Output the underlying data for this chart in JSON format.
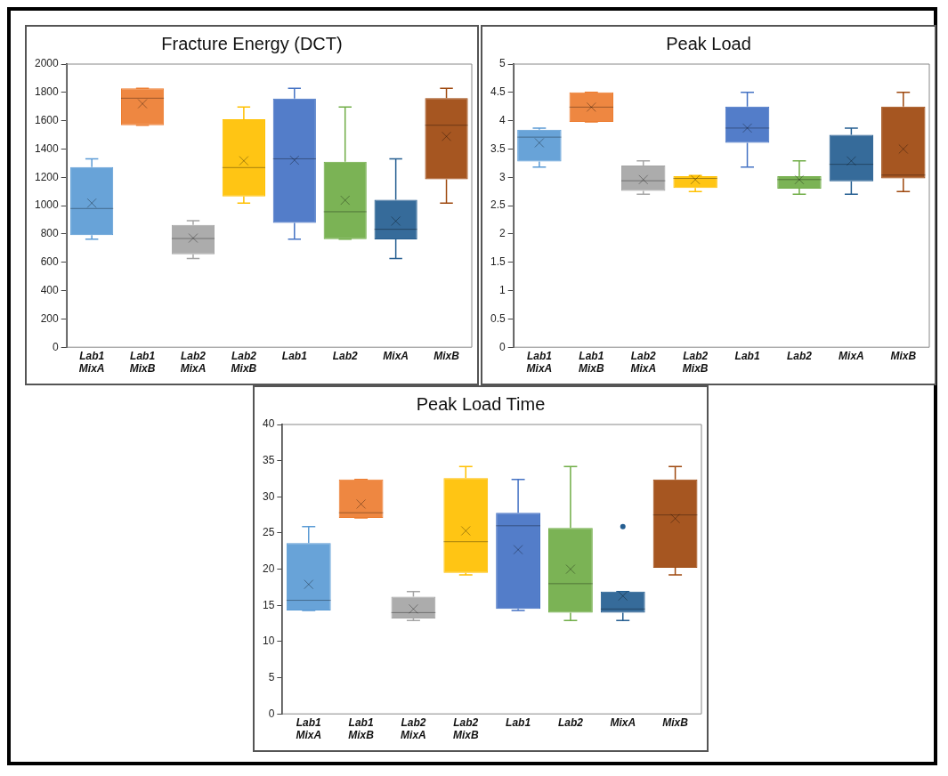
{
  "chart_data": [
    {
      "type": "box",
      "title": "Fracture Energy (DCT)",
      "categories": [
        "Lab1 MixA",
        "Lab1 MixB",
        "Lab2 MixA",
        "Lab2 MixB",
        "Lab1",
        "Lab2",
        "MixA",
        "MixB"
      ],
      "colors": [
        "#5b9bd5",
        "#ed7d31",
        "#a5a5a5",
        "#ffc000",
        "#4472c4",
        "#70ad47",
        "#255e91",
        "#9e480e"
      ],
      "boxes": [
        {
          "low": 764,
          "q1": 791,
          "median": 980,
          "q3": 1273,
          "high": 1331,
          "mean": 1018
        },
        {
          "low": 1568,
          "q1": 1568,
          "median": 1759,
          "q3": 1828,
          "high": 1828,
          "mean": 1720
        },
        {
          "low": 627,
          "q1": 656,
          "median": 768,
          "q3": 864,
          "high": 893,
          "mean": 771
        },
        {
          "low": 1018,
          "q1": 1065,
          "median": 1269,
          "q3": 1610,
          "high": 1697,
          "mean": 1317
        },
        {
          "low": 764,
          "q1": 878,
          "median": 1331,
          "q3": 1757,
          "high": 1828,
          "mean": 1321
        },
        {
          "low": 764,
          "q1": 764,
          "median": 957,
          "q3": 1310,
          "high": 1697,
          "mean": 1038
        },
        {
          "low": 627,
          "q1": 762,
          "median": 833,
          "q3": 1041,
          "high": 1331,
          "mean": 891
        },
        {
          "low": 1018,
          "q1": 1186,
          "median": 1568,
          "q3": 1759,
          "high": 1828,
          "mean": 1489
        }
      ],
      "ylim": [
        0,
        2000
      ],
      "yticks": [
        0,
        200,
        400,
        600,
        800,
        1000,
        1200,
        1400,
        1600,
        1800,
        2000
      ],
      "grid": false
    },
    {
      "type": "box",
      "title": "Peak Load",
      "categories": [
        "Lab1 MixA",
        "Lab1 MixB",
        "Lab2 MixA",
        "Lab2 MixB",
        "Lab1",
        "Lab2",
        "MixA",
        "MixB"
      ],
      "colors": [
        "#5b9bd5",
        "#ed7d31",
        "#a5a5a5",
        "#ffc000",
        "#4472c4",
        "#70ad47",
        "#255e91",
        "#9e480e"
      ],
      "boxes": [
        {
          "low": 3.18,
          "q1": 3.28,
          "median": 3.71,
          "q3": 3.84,
          "high": 3.87,
          "mean": 3.61
        },
        {
          "low": 3.98,
          "q1": 3.98,
          "median": 4.24,
          "q3": 4.5,
          "high": 4.5,
          "mean": 4.24
        },
        {
          "low": 2.7,
          "q1": 2.76,
          "median": 2.94,
          "q3": 3.21,
          "high": 3.29,
          "mean": 2.96
        },
        {
          "low": 2.75,
          "q1": 2.81,
          "median": 2.98,
          "q3": 3.02,
          "high": 3.03,
          "mean": 2.96
        },
        {
          "low": 3.18,
          "q1": 3.61,
          "median": 3.87,
          "q3": 4.25,
          "high": 4.5,
          "mean": 3.87
        },
        {
          "low": 2.7,
          "q1": 2.8,
          "median": 2.96,
          "q3": 3.02,
          "high": 3.29,
          "mean": 2.96
        },
        {
          "low": 2.7,
          "q1": 2.93,
          "median": 3.23,
          "q3": 3.75,
          "high": 3.87,
          "mean": 3.29
        },
        {
          "low": 2.75,
          "q1": 2.98,
          "median": 3.04,
          "q3": 4.25,
          "high": 4.5,
          "mean": 3.5
        }
      ],
      "ylim": [
        0,
        5
      ],
      "yticks": [
        0,
        0.5,
        1,
        1.5,
        2,
        2.5,
        3,
        3.5,
        4,
        4.5,
        5
      ],
      "grid": false
    },
    {
      "type": "box",
      "title": "Peak Load Time",
      "categories": [
        "Lab1 MixA",
        "Lab1 MixB",
        "Lab2 MixA",
        "Lab2 MixB",
        "Lab1",
        "Lab2",
        "MixA",
        "MixB"
      ],
      "colors": [
        "#5b9bd5",
        "#ed7d31",
        "#a5a5a5",
        "#ffc000",
        "#4472c4",
        "#70ad47",
        "#255e91",
        "#9e480e"
      ],
      "boxes": [
        {
          "low": 14.3,
          "q1": 14.3,
          "median": 15.7,
          "q3": 23.6,
          "high": 25.9,
          "mean": 17.9
        },
        {
          "low": 27.1,
          "q1": 27.1,
          "median": 27.8,
          "q3": 32.4,
          "high": 32.4,
          "mean": 29.0
        },
        {
          "low": 12.9,
          "q1": 13.2,
          "median": 14.0,
          "q3": 16.2,
          "high": 16.9,
          "mean": 14.5
        },
        {
          "low": 19.2,
          "q1": 19.5,
          "median": 23.8,
          "q3": 32.6,
          "high": 34.2,
          "mean": 25.3
        },
        {
          "low": 14.3,
          "q1": 14.5,
          "median": 26.0,
          "q3": 27.8,
          "high": 32.4,
          "mean": 22.7
        },
        {
          "low": 12.9,
          "q1": 14.0,
          "median": 18.0,
          "q3": 25.7,
          "high": 34.2,
          "mean": 20.0
        },
        {
          "low": 12.9,
          "q1": 14.0,
          "median": 14.5,
          "q3": 16.9,
          "high": 16.9,
          "mean": 16.3,
          "outliers": [
            25.9
          ]
        },
        {
          "low": 19.2,
          "q1": 20.2,
          "median": 27.5,
          "q3": 32.4,
          "high": 34.2,
          "mean": 27.0
        }
      ],
      "ylim": [
        0,
        40
      ],
      "yticks": [
        0,
        5,
        10,
        15,
        20,
        25,
        30,
        35,
        40
      ],
      "grid": false
    }
  ]
}
